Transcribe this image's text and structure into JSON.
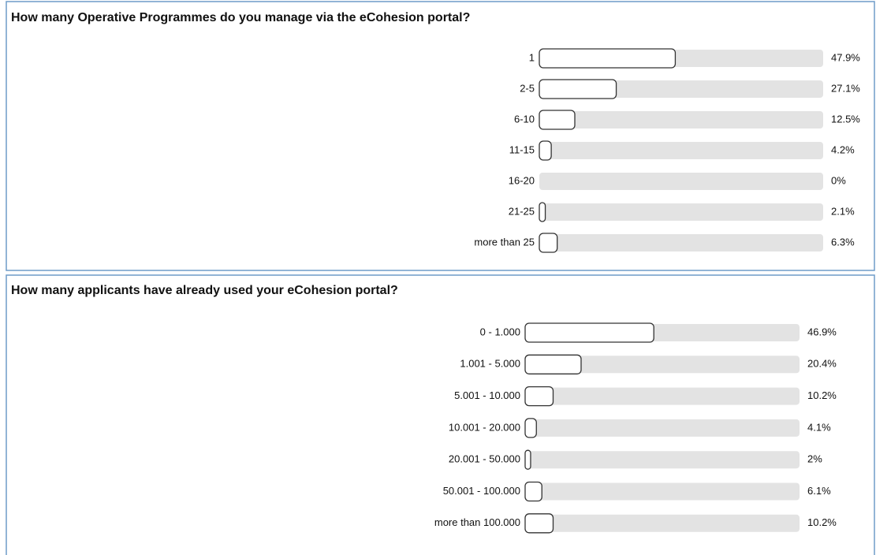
{
  "chart_data": [
    {
      "type": "bar",
      "title": "How many Operative Programmes do you manage via the eCohesion portal?",
      "categories": [
        "1",
        "2-5",
        "6-10",
        "11-15",
        "16-20",
        "21-25",
        "more than 25"
      ],
      "values": [
        47.9,
        27.1,
        12.5,
        4.2,
        0,
        2.1,
        6.3
      ],
      "value_labels": [
        "47.9%",
        "27.1%",
        "12.5%",
        "4.2%",
        "0%",
        "2.1%",
        "6.3%"
      ],
      "xlim": [
        0,
        100
      ],
      "color": "#ffffff"
    },
    {
      "type": "bar",
      "title": "How many applicants have already used your eCohesion portal?",
      "categories": [
        "0 - 1.000",
        "1.001 - 5.000",
        "5.001 - 10.000",
        "10.001 - 20.000",
        "20.001 - 50.000",
        "50.001 - 100.000",
        "more than 100.000"
      ],
      "values": [
        46.9,
        20.4,
        10.2,
        4.1,
        2,
        6.1,
        10.2
      ],
      "value_labels": [
        "46.9%",
        "20.4%",
        "10.2%",
        "4.1%",
        "2%",
        "6.1%",
        "10.2%"
      ],
      "xlim": [
        0,
        100
      ],
      "color": "#ffffff"
    }
  ]
}
